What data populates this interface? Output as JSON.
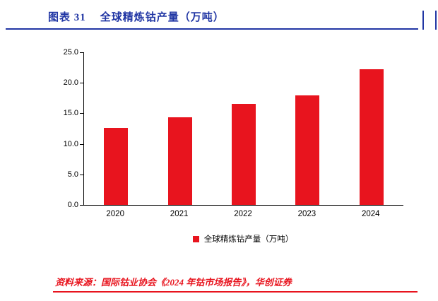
{
  "header": {
    "figure_label": "图表 31",
    "title": "全球精炼钴产量（万吨）"
  },
  "chart_data": {
    "type": "bar",
    "title": "全球精炼钴产量（万吨）",
    "categories": [
      "2020",
      "2021",
      "2022",
      "2023",
      "2024"
    ],
    "values": [
      12.6,
      14.4,
      16.5,
      17.9,
      22.2
    ],
    "xlabel": "",
    "ylabel": "",
    "ylim": [
      0,
      25
    ],
    "ytick_step": 5,
    "ytick_decimals": 1,
    "grid": false,
    "legend_position": "bottom",
    "legend_label": "全球精炼钴产量（万吨）",
    "bar_color": "#e8141e"
  },
  "footer": {
    "source": "资料来源：国际钴业协会《2024 年钴市场报告》，华创证券"
  },
  "colors": {
    "accent_blue": "#2136a4",
    "accent_red": "#e8141e"
  }
}
